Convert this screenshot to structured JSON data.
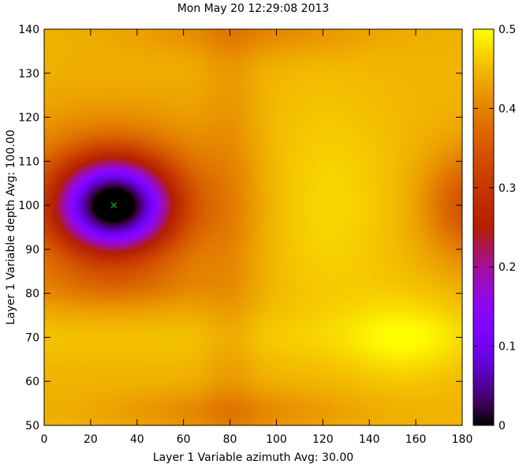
{
  "chart_data": {
    "type": "heatmap",
    "title": "Mon May 20 12:29:08 2013",
    "xlabel": "Layer 1 Variable azimuth Avg: 30.00",
    "ylabel": "Layer 1 Variable depth Avg: 100.00",
    "xlim": [
      0,
      180
    ],
    "ylim": [
      50,
      140
    ],
    "x_ticks": [
      0,
      20,
      40,
      60,
      80,
      100,
      120,
      140,
      160,
      180
    ],
    "y_ticks": [
      50,
      60,
      70,
      80,
      90,
      100,
      110,
      120,
      130,
      140
    ],
    "colorbar": {
      "range": [
        0,
        0.5
      ],
      "ticks": [
        0,
        0.1,
        0.2,
        0.3,
        0.4,
        0.5
      ],
      "tick_labels": [
        "0",
        "0.1",
        "0.2",
        "0.3",
        "0.4",
        "0.5"
      ],
      "colormap": "gnuplot-pm3d-default (black-purple-red-orange-yellow)"
    },
    "marker": {
      "x": 30,
      "y": 100,
      "symbol": "x",
      "color": "#00c000"
    },
    "grid": false,
    "field_description": "minimum near (30,100) ~0.05; ridge ~0.45 near azimuth 120; local low ~0.3 near (180,100); high ~0.48 near (155,70)"
  }
}
